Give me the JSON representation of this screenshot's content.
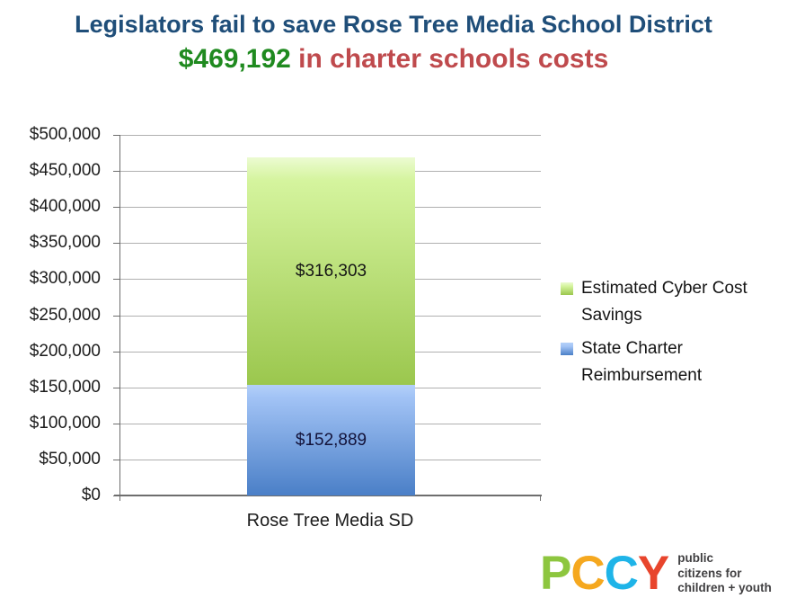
{
  "title": {
    "line1": "Legislators fail to save Rose Tree Media School District",
    "line2_amount": "$469,192",
    "line2_rest": " in charter schools costs"
  },
  "colors": {
    "title_blue": "#1F4E79",
    "amount_green": "#1F8A1F",
    "rest_red": "#BF4A4D",
    "gridline": "#B0B0B0",
    "axis": "#6E6E6E"
  },
  "chart_data": {
    "type": "bar",
    "stacked": true,
    "title": "Legislators fail to save Rose Tree Media School District $469,192 in charter schools costs",
    "categories": [
      "Rose Tree Media SD"
    ],
    "series": [
      {
        "name": "State Charter Reimbursement",
        "values": [
          152889
        ],
        "data_label": "$152,889",
        "label_color": "#13133A",
        "color_top": "#B4D0F9",
        "color_mid": "#A3C4F6",
        "color_bottom": "#4A7FC7"
      },
      {
        "name": "Estimated Cyber Cost Savings",
        "values": [
          316303
        ],
        "data_label": "$316,303",
        "label_color": "#151515",
        "color_top": "#ECFBD2",
        "color_mid": "#D5F49E",
        "color_bottom": "#9BC74E"
      }
    ],
    "total": 469192,
    "ylim": [
      0,
      500000
    ],
    "ytick_step": 50000,
    "ytick_labels": [
      "$500,000",
      "$450,000",
      "$400,000",
      "$350,000",
      "$300,000",
      "$250,000",
      "$200,000",
      "$150,000",
      "$100,000",
      "$50,000",
      "$0"
    ],
    "grid": true,
    "legend_position": "right"
  },
  "legend": {
    "items": [
      {
        "label": "Estimated Cyber Cost Savings",
        "swatch": "green-swatch",
        "color_top": "#ECFBD2",
        "color_mid": "#D5F49E",
        "color_bottom": "#9BC74E"
      },
      {
        "label": "State Charter Reimbursement",
        "swatch": "blue-swatch",
        "color_top": "#B4D0F9",
        "color_mid": "#A3C4F6",
        "color_bottom": "#4A7FC7"
      }
    ]
  },
  "footer_logo": {
    "letters": [
      {
        "char": "P",
        "color": "#8DC63F"
      },
      {
        "char": "C",
        "color": "#F5A81F"
      },
      {
        "char": "C",
        "color": "#1FB4E8"
      },
      {
        "char": "Y",
        "color": "#E8452C"
      }
    ],
    "tagline_lines": [
      "public",
      "citizens for",
      "children + youth"
    ]
  }
}
